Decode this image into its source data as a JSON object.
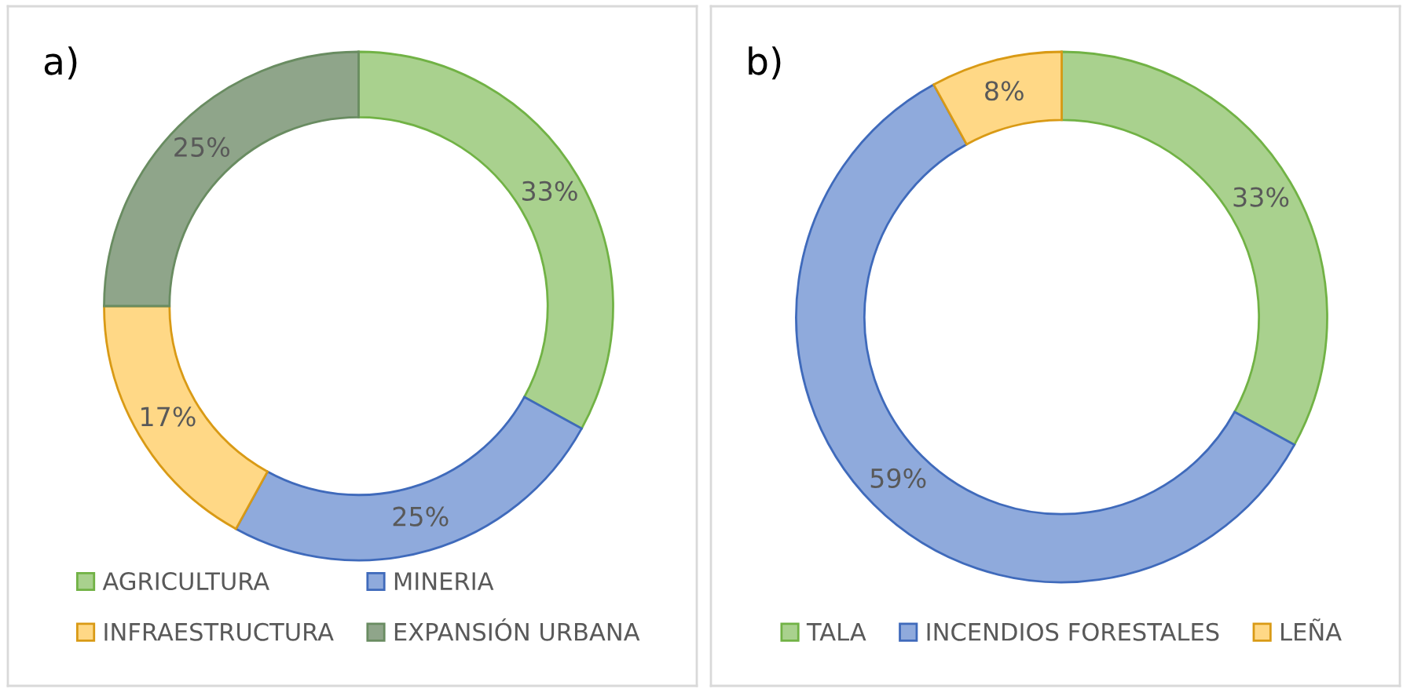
{
  "chart_data": [
    {
      "type": "donut",
      "title": "a)",
      "categories": [
        "AGRICULTURA",
        "MINERIA",
        "INFRAESTRUCTURA",
        "EXPANSIÓN URBANA"
      ],
      "values": [
        33,
        25,
        17,
        25
      ],
      "colors": [
        "#a9d18e",
        "#8faadc",
        "#ffd886",
        "#8fa58a"
      ],
      "value_labels": [
        "33%",
        "25%",
        "17%",
        "25%"
      ],
      "legend": "bottom"
    },
    {
      "type": "donut",
      "title": "b)",
      "categories": [
        "TALA",
        "INCENDIOS FORESTALES",
        "LEÑA"
      ],
      "values": [
        33,
        59,
        8
      ],
      "colors": [
        "#a9d18e",
        "#8faadc",
        "#ffd886"
      ],
      "value_labels": [
        "33%",
        "59%",
        "8%"
      ],
      "legend": "bottom"
    }
  ]
}
